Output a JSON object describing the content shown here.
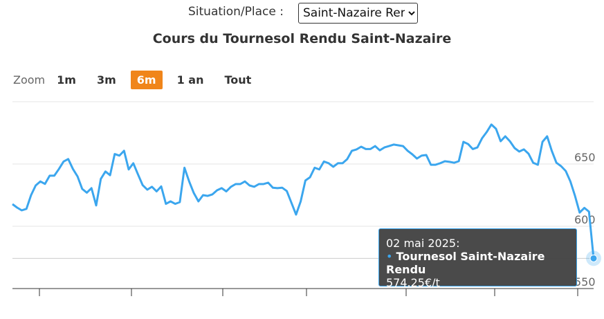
{
  "controls": {
    "label": "Situation/Place :",
    "selected": "Saint-Nazaire Rendu",
    "zoom_label": "Zoom",
    "zoom_buttons": [
      "1m",
      "3m",
      "6m",
      "1 an",
      "Tout"
    ],
    "active_zoom": "6m"
  },
  "chart_data": {
    "type": "line",
    "title": "Cours du Tournesol Rendu Saint-Nazaire",
    "series": [
      {
        "name": "Tournesol Saint-Nazaire Rendu",
        "color": "#3ba6ee",
        "values": [
          617.8,
          615,
          612.8,
          614,
          625,
          632.8,
          636,
          634,
          640.6,
          640.6,
          646,
          652,
          654,
          646,
          640,
          630,
          627,
          630.6,
          616.7,
          638,
          644,
          641,
          658,
          656.7,
          660.6,
          645.6,
          650.6,
          641.7,
          633,
          629.4,
          631.7,
          628,
          632,
          618,
          620,
          618,
          619.4,
          647,
          636,
          626.7,
          620,
          625,
          624.4,
          625.6,
          628.9,
          630.6,
          628,
          631.7,
          633.9,
          633.9,
          636,
          632.8,
          631.7,
          633.9,
          633.9,
          635,
          631,
          630.6,
          631,
          628.3,
          618.9,
          609.4,
          620,
          636.7,
          639.4,
          647,
          645.6,
          652,
          650.6,
          647.8,
          650.6,
          650.6,
          653.9,
          660.6,
          661.7,
          663.9,
          662,
          662,
          664.4,
          661,
          663.3,
          664.4,
          665.6,
          665,
          664.4,
          660.6,
          657.8,
          654.4,
          656.7,
          657.2,
          649.4,
          649.4,
          650.6,
          652.2,
          651.7,
          651,
          652.2,
          667.8,
          666,
          662,
          663.3,
          670.6,
          675.6,
          681.7,
          678.3,
          668.3,
          672.2,
          668.3,
          662.8,
          660,
          661.7,
          658.3,
          651,
          649.4,
          667.8,
          672.2,
          660.6,
          651,
          648.3,
          644.4,
          636,
          624.4,
          611,
          614.8,
          611.7,
          574.25
        ]
      }
    ],
    "ylim": [
      550,
      700
    ],
    "yticks": [
      550,
      600,
      650
    ],
    "grid": true,
    "tooltip": {
      "date": "02 mai 2025:",
      "value_label": "574.25€/t"
    }
  }
}
